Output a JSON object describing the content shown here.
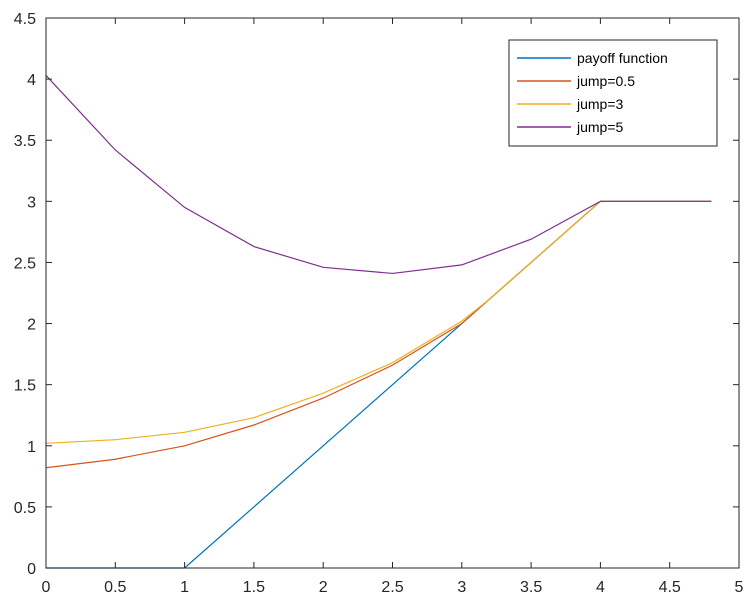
{
  "chart_data": {
    "type": "line",
    "title": "",
    "xlabel": "",
    "ylabel": "",
    "xlim": [
      0,
      5
    ],
    "ylim": [
      0,
      4.5
    ],
    "xticks": [
      "0",
      "0.5",
      "1",
      "1.5",
      "2",
      "2.5",
      "3",
      "3.5",
      "4",
      "4.5",
      "5"
    ],
    "yticks": [
      "0",
      "0.5",
      "1",
      "1.5",
      "2",
      "2.5",
      "3",
      "3.5",
      "4",
      "4.5"
    ],
    "grid": false,
    "legend_position": "top-right",
    "series": [
      {
        "name": "payoff function",
        "color": "#0072BD",
        "x": [
          0,
          0.5,
          1.0,
          1.5,
          2.0,
          2.5,
          3.0,
          3.5,
          4.0,
          4.5,
          4.8
        ],
        "y": [
          0,
          0,
          0,
          0.5,
          1.0,
          1.5,
          2.0,
          2.5,
          3.0,
          3.0,
          3.0
        ]
      },
      {
        "name": "jump=0.5",
        "color": "#D95319",
        "x": [
          0,
          0.5,
          1.0,
          1.5,
          2.0,
          2.5,
          3.0,
          3.2,
          3.5,
          4.0,
          4.5,
          4.8
        ],
        "y": [
          0.82,
          0.89,
          1.0,
          1.17,
          1.39,
          1.66,
          2.0,
          2.2,
          2.5,
          3.0,
          3.0,
          3.0
        ]
      },
      {
        "name": "jump=3",
        "color": "#EDB120",
        "x": [
          0,
          0.5,
          1.0,
          1.5,
          2.0,
          2.5,
          3.0,
          3.2,
          3.5,
          4.0,
          4.5,
          4.8
        ],
        "y": [
          1.02,
          1.05,
          1.11,
          1.23,
          1.43,
          1.68,
          2.02,
          2.2,
          2.5,
          3.0,
          3.0,
          3.0
        ]
      },
      {
        "name": "jump=5",
        "color": "#7E2F8E",
        "x": [
          0,
          0.5,
          1.0,
          1.5,
          2.0,
          2.5,
          3.0,
          3.5,
          4.0,
          4.5,
          4.8
        ],
        "y": [
          4.03,
          3.42,
          2.95,
          2.63,
          2.46,
          2.41,
          2.48,
          2.69,
          3.0,
          3.0,
          3.0
        ]
      }
    ]
  }
}
